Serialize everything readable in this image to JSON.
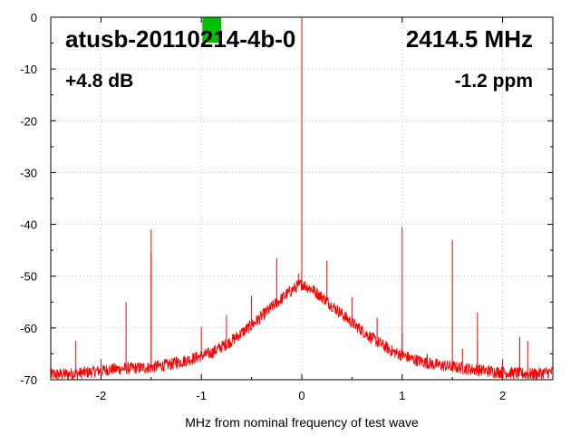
{
  "chart_data": {
    "type": "line",
    "title": "atusb-20110214-4b-0",
    "frequency_label": "2414.5 MHz",
    "gain_label": "+4.8 dB",
    "ppm_label": "-1.2 ppm",
    "xlabel": "MHz from nominal frequency of test wave",
    "ylabel": "",
    "xlim": [
      -2.5,
      2.5
    ],
    "ylim": [
      -70,
      0
    ],
    "grid": true,
    "series_color": "#ff0000",
    "marker_color": "#00c000",
    "marker_x": -0.9,
    "x_ticks": [
      -2,
      -1,
      0,
      1,
      2
    ],
    "x_tick_labels": [
      "-2",
      "-1",
      "0",
      "1",
      "2"
    ],
    "y_ticks": [
      0,
      -10,
      -20,
      -30,
      -40,
      -50,
      -60,
      -70
    ],
    "y_tick_labels": [
      "0",
      "-10",
      "-20",
      "-30",
      "-40",
      "-50",
      "-60",
      "-70"
    ],
    "noise_floor": [
      [
        -2.48,
        -69.0
      ],
      [
        -2.3,
        -68.9
      ],
      [
        -2.1,
        -68.5
      ],
      [
        -1.9,
        -68.0
      ],
      [
        -1.7,
        -67.8
      ],
      [
        -1.5,
        -67.6
      ],
      [
        -1.3,
        -67.0
      ],
      [
        -1.1,
        -66.0
      ],
      [
        -0.9,
        -64.8
      ],
      [
        -0.7,
        -62.5
      ],
      [
        -0.5,
        -59.5
      ],
      [
        -0.3,
        -56.0
      ],
      [
        -0.15,
        -53.5
      ],
      [
        -0.05,
        -52.0
      ],
      [
        0.0,
        -51.5
      ],
      [
        0.1,
        -52.5
      ],
      [
        0.2,
        -54.0
      ],
      [
        0.35,
        -56.5
      ],
      [
        0.5,
        -59.0
      ],
      [
        0.7,
        -62.0
      ],
      [
        0.9,
        -64.5
      ],
      [
        1.1,
        -66.0
      ],
      [
        1.3,
        -67.0
      ],
      [
        1.5,
        -67.5
      ],
      [
        1.7,
        -68.0
      ],
      [
        1.9,
        -68.4
      ],
      [
        2.1,
        -68.7
      ],
      [
        2.3,
        -68.9
      ],
      [
        2.5,
        -68.5
      ]
    ],
    "spurs": [
      {
        "x": -2.25,
        "y": -62.5
      },
      {
        "x": -2.0,
        "y": -66.0
      },
      {
        "x": -1.75,
        "y": -55.0
      },
      {
        "x": -1.5,
        "y": -41.0
      },
      {
        "x": -1.5,
        "y": -45.5
      },
      {
        "x": -1.25,
        "y": -65.5
      },
      {
        "x": -1.0,
        "y": -59.8
      },
      {
        "x": -0.75,
        "y": -57.5
      },
      {
        "x": -0.5,
        "y": -53.8
      },
      {
        "x": -0.25,
        "y": -46.5
      },
      {
        "x": -0.03,
        "y": -49.5
      },
      {
        "x": 0.0,
        "y": 0.0
      },
      {
        "x": 0.0,
        "y": -35.5
      },
      {
        "x": 0.25,
        "y": -47.0
      },
      {
        "x": 0.5,
        "y": -54.0
      },
      {
        "x": 0.75,
        "y": -58.0
      },
      {
        "x": 1.0,
        "y": -40.5
      },
      {
        "x": 1.0,
        "y": -61.0
      },
      {
        "x": 1.25,
        "y": -65.0
      },
      {
        "x": 1.5,
        "y": -43.0
      },
      {
        "x": 1.6,
        "y": -64.0
      },
      {
        "x": 1.75,
        "y": -57.0
      },
      {
        "x": 1.75,
        "y": -62.5
      },
      {
        "x": 2.0,
        "y": -66.0
      },
      {
        "x": 2.17,
        "y": -61.8
      },
      {
        "x": 2.25,
        "y": -62.5
      }
    ]
  }
}
